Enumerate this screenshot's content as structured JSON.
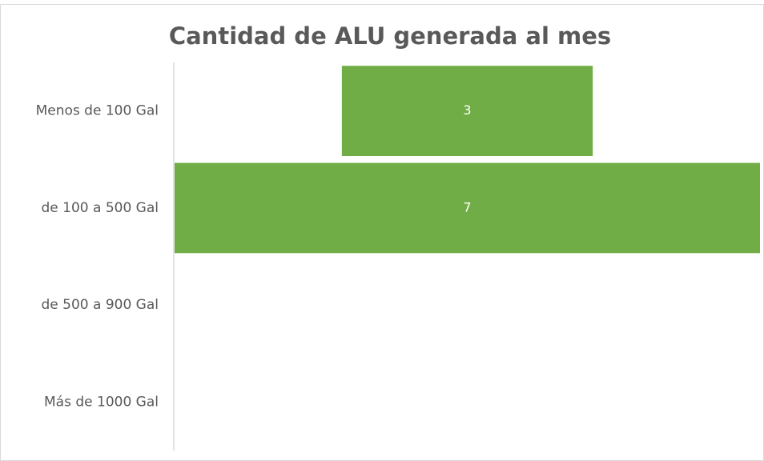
{
  "chart_data": {
    "type": "funnel",
    "title": "Cantidad de ALU generada al mes",
    "categories": [
      "Menos de 100 Gal",
      "de 100 a 500 Gal",
      "de 500 a 900 Gal",
      "Más de 1000 Gal"
    ],
    "values": [
      3,
      7,
      null,
      null
    ],
    "color": "#70ad47"
  }
}
